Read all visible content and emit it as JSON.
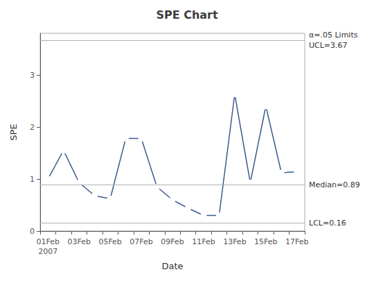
{
  "chart_data": {
    "type": "line",
    "title": "SPE Chart",
    "xlabel": "Date",
    "ylabel": "SPE",
    "categories": [
      "01Feb\n2007",
      null,
      "03Feb",
      null,
      "05Feb",
      null,
      "07Feb",
      null,
      "09Feb",
      null,
      "11Feb",
      null,
      "13Feb",
      null,
      "15Feb",
      null,
      "17Feb"
    ],
    "values": [
      1.0,
      1.55,
      0.93,
      0.68,
      0.62,
      1.78,
      1.78,
      0.85,
      0.6,
      0.44,
      0.3,
      0.3,
      2.63,
      0.93,
      2.4,
      1.12,
      1.14
    ],
    "color": "#3A5A8C",
    "marker": "circle",
    "ylim": [
      0,
      3.8
    ],
    "yticks": [
      0,
      1,
      2,
      3
    ],
    "grid": false,
    "control_lines": [
      {
        "value": 3.67,
        "labels": [
          "α=.05 Limits",
          "UCL=3.67"
        ],
        "color": "#b0b0b0"
      },
      {
        "value": 0.89,
        "labels": [
          "Median=0.89"
        ],
        "color": "#b0b0b0"
      },
      {
        "value": 0.16,
        "labels": [
          "LCL=0.16"
        ],
        "color": "#b0b0b0"
      }
    ]
  }
}
